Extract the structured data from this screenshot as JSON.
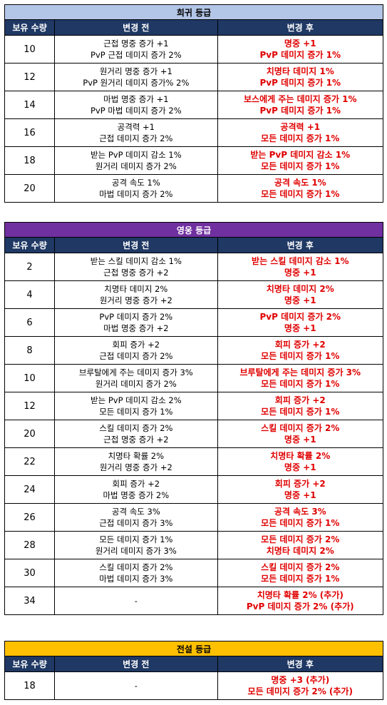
{
  "columns": {
    "qty": "보유 수량",
    "before": "변경 전",
    "after": "변경 후"
  },
  "rare": {
    "title": "희귀 등급",
    "rows": [
      {
        "qty": "10",
        "before": [
          "근접 명중 증가 +1",
          "PvP 근접 데미지 증가 2%"
        ],
        "after": [
          "명중 +1",
          "PvP 데미지 증가 1%"
        ]
      },
      {
        "qty": "12",
        "before": [
          "원거리 명중 증가 +1",
          "PvP 원거리 데미지 증가% 2%"
        ],
        "after": [
          "치명타 데미지 1%",
          "PvP 데미지 증가 1%"
        ]
      },
      {
        "qty": "14",
        "before": [
          "마법 명중 증가 +1",
          "PvP 마법 데미지 증가 2%"
        ],
        "after": [
          "보스에게 주는 데미지 증가 1%",
          "PvP 데미지 증가 1%"
        ]
      },
      {
        "qty": "16",
        "before": [
          "공격력 +1",
          "근접 데미지 증가 2%"
        ],
        "after": [
          "공격력 +1",
          "모든 데미지 증가 1%"
        ]
      },
      {
        "qty": "18",
        "before": [
          "받는 PvP 데미지 감소 1%",
          "원거리 데미지 증가 2%"
        ],
        "after": [
          "받는 PvP 데미지 감소 1%",
          "모든 데미지 증가 1%"
        ]
      },
      {
        "qty": "20",
        "before": [
          "공격 속도 1%",
          "마법 데미지 증가 2%"
        ],
        "after": [
          "공격 속도 1%",
          "모든 데미지 증가 1%"
        ]
      }
    ]
  },
  "hero": {
    "title": "영웅 등급",
    "rows": [
      {
        "qty": "2",
        "before": [
          "받는 스킬 데미지 감소 1%",
          "근접 명중 증가 +2"
        ],
        "after": [
          "받는 스킬 데미지 감소 1%",
          "명중 +1"
        ]
      },
      {
        "qty": "4",
        "before": [
          "치명타 데미지 2%",
          "원거리 명중 증가 +2"
        ],
        "after": [
          "치명타 데미지 2%",
          "명중 +1"
        ]
      },
      {
        "qty": "6",
        "before": [
          "PvP 데미지 증가 2%",
          "마법 명중 증가 +2"
        ],
        "after": [
          "PvP 데미지 증가 2%",
          "명중 +1"
        ]
      },
      {
        "qty": "8",
        "before": [
          "회피 증가 +2",
          "근접 데미지 증가 2%"
        ],
        "after": [
          "회피 증가 +2",
          "모든 데미지 증가 1%"
        ]
      },
      {
        "qty": "10",
        "before": [
          "브루탈에게 주는 데미지 증가 3%",
          "원거리 데미지 증가 2%"
        ],
        "after": [
          "브루탈에게 주는 데미지 증가 3%",
          "모든 데미지 증가 1%"
        ]
      },
      {
        "qty": "12",
        "before": [
          "받는 PvP 데미지 감소 2%",
          "모든 데미지 증가 1%"
        ],
        "after": [
          "회피 증가 +2",
          "모든 데미지 증가 1%"
        ]
      },
      {
        "qty": "20",
        "before": [
          "스킬 데미지 증가 2%",
          "근접 명중 증가 +2"
        ],
        "after": [
          "스킬 데미지 증가 2%",
          "명중 +1"
        ]
      },
      {
        "qty": "22",
        "before": [
          "치명타 확률 2%",
          "원거리 명중 증가 +2"
        ],
        "after": [
          "치명타 확률 2%",
          "명중 +1"
        ]
      },
      {
        "qty": "24",
        "before": [
          "회피 증가 +2",
          "마법 명중 증가 2%"
        ],
        "after": [
          "회피 증가 +2",
          "명중 +1"
        ]
      },
      {
        "qty": "26",
        "before": [
          "공격 속도 3%",
          "근접 데미지 증가 3%"
        ],
        "after": [
          "공격 속도 3%",
          "모든 데미지 증가 1%"
        ]
      },
      {
        "qty": "28",
        "before": [
          "모든 데미지 증가 1%",
          "원거리 데미지 증가 3%"
        ],
        "after": [
          "모든 데미지 증가 2%",
          "치명타 데미지 2%"
        ]
      },
      {
        "qty": "30",
        "before": [
          "스킬 데미지 증가 2%",
          "마법 데미지 증가 3%"
        ],
        "after": [
          "스킬 데미지 증가 2%",
          "모든 데미지 증가 1%"
        ]
      },
      {
        "qty": "34",
        "before": [
          "-"
        ],
        "after": [
          "치명타 확률 2% (추가)",
          "PvP 데미지 증가 2% (추가)"
        ]
      }
    ]
  },
  "legend": {
    "title": "전설 등급",
    "rows": [
      {
        "qty": "18",
        "before": [
          "-"
        ],
        "after": [
          "명중 +3 (추가)",
          "모든 데미지 증가 2% (추가)"
        ]
      }
    ]
  }
}
